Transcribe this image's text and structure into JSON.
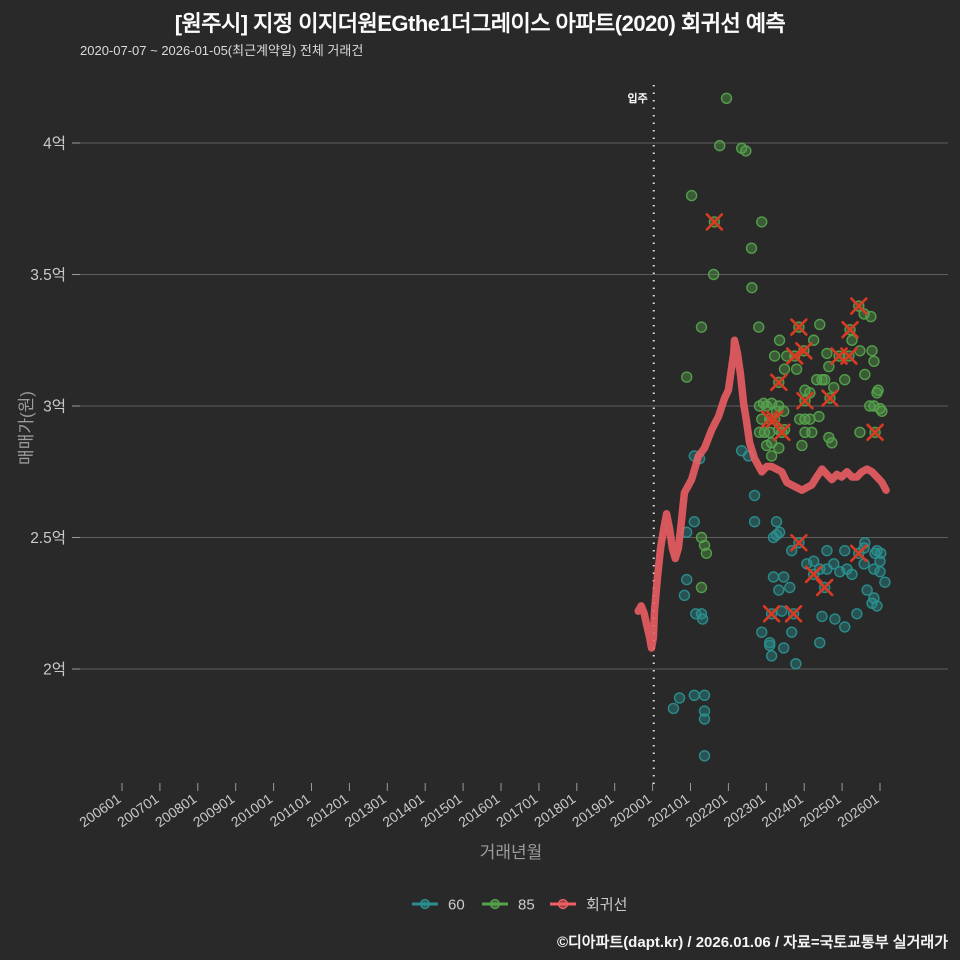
{
  "header": {
    "title": "[원주시] 지정 이지더원EGthe1더그레이스 아파트(2020) 회귀선 예측",
    "subtitle": "2020-07-07 ~ 2026-01-05(최근계약일) 전체 거래건"
  },
  "watermark": "©디아파트(dapt.kr) / 2026.01.06 / 자료=국토교통부 실거래가",
  "annotation": {
    "label": "입주",
    "x": 2020.03
  },
  "colors": {
    "background": "#292929",
    "grid": "#5d5d5d",
    "tick": "#9a9a9a",
    "dotted_line": "#e0e0e0",
    "teal": "#2b8f8f",
    "green": "#55a24d",
    "red_line": "#ef5f63",
    "x_mark": "#d93a22"
  },
  "legend": [
    {
      "label": "60",
      "color": "#2b8f8f"
    },
    {
      "label": "85",
      "color": "#55a24d"
    },
    {
      "label": "회귀선",
      "color": "#ef5f63"
    }
  ],
  "chart_data": {
    "type": "scatter",
    "title": "[원주시] 지정 이지더원EGthe1더그레이스 아파트(2020) 회귀선 예측",
    "xlabel": "거래년월",
    "ylabel": "매매가(원)",
    "grid": true,
    "legend_position": "bottom",
    "xlim": [
      2004.9,
      2027.8
    ],
    "ylim": [
      1.52,
      4.22
    ],
    "x_ticks": {
      "years": [
        2006,
        2007,
        2008,
        2009,
        2010,
        2011,
        2012,
        2013,
        2014,
        2015,
        2016,
        2017,
        2018,
        2019,
        2020,
        2021,
        2022,
        2023,
        2024,
        2025,
        2026
      ],
      "labels": [
        "200601",
        "200701",
        "200801",
        "200901",
        "201001",
        "201101",
        "201201",
        "201301",
        "201401",
        "201501",
        "201601",
        "201701",
        "201801",
        "201901",
        "202001",
        "202101",
        "202201",
        "202301",
        "202401",
        "202501",
        "202601"
      ]
    },
    "y_ticks": {
      "values": [
        2,
        2.5,
        3,
        3.5,
        4
      ],
      "labels": [
        "2억",
        "2.5억",
        "3억",
        "3.5억",
        "4억"
      ]
    },
    "series": [
      {
        "name": "60",
        "type": "scatter",
        "marker": "circle",
        "color": "#2b8f8f",
        "points": [
          [
            2021.1,
            2.81
          ],
          [
            2021.24,
            2.8
          ],
          [
            2022.35,
            2.83
          ],
          [
            2022.53,
            2.81
          ],
          [
            2022.69,
            2.66
          ],
          [
            2021.1,
            2.56
          ],
          [
            2020.9,
            2.52
          ],
          [
            2022.69,
            2.56
          ],
          [
            2023.27,
            2.56
          ],
          [
            2023.35,
            2.52
          ],
          [
            2023.19,
            2.5
          ],
          [
            2023.27,
            2.51
          ],
          [
            2023.67,
            2.45
          ],
          [
            2024.6,
            2.45
          ],
          [
            2025.07,
            2.45
          ],
          [
            2025.6,
            2.48
          ],
          [
            2025.87,
            2.44
          ],
          [
            2026.0,
            2.41
          ],
          [
            2025.58,
            2.46
          ],
          [
            2025.92,
            2.45
          ],
          [
            2026.02,
            2.44
          ],
          [
            2024.07,
            2.4
          ],
          [
            2024.25,
            2.41
          ],
          [
            2024.41,
            2.38
          ],
          [
            2024.6,
            2.38
          ],
          [
            2024.78,
            2.4
          ],
          [
            2024.94,
            2.37
          ],
          [
            2025.13,
            2.38
          ],
          [
            2025.26,
            2.36
          ],
          [
            2025.58,
            2.4
          ],
          [
            2025.84,
            2.38
          ],
          [
            2026.0,
            2.37
          ],
          [
            2023.19,
            2.35
          ],
          [
            2023.46,
            2.35
          ],
          [
            2023.62,
            2.31
          ],
          [
            2023.33,
            2.3
          ],
          [
            2020.9,
            2.34
          ],
          [
            2020.84,
            2.28
          ],
          [
            2026.13,
            2.33
          ],
          [
            2025.66,
            2.3
          ],
          [
            2025.84,
            2.27
          ],
          [
            2023.41,
            2.22
          ],
          [
            2024.47,
            2.2
          ],
          [
            2024.81,
            2.19
          ],
          [
            2025.39,
            2.21
          ],
          [
            2025.79,
            2.25
          ],
          [
            2025.92,
            2.24
          ],
          [
            2022.88,
            2.14
          ],
          [
            2023.09,
            2.1
          ],
          [
            2023.67,
            2.14
          ],
          [
            2023.09,
            2.09
          ],
          [
            2023.46,
            2.08
          ],
          [
            2024.41,
            2.1
          ],
          [
            2025.07,
            2.16
          ],
          [
            2023.14,
            2.05
          ],
          [
            2023.78,
            2.02
          ],
          [
            2021.32,
            2.19
          ],
          [
            2021.14,
            2.21
          ],
          [
            2021.29,
            2.21
          ],
          [
            2021.1,
            1.9
          ],
          [
            2020.55,
            1.85
          ],
          [
            2020.71,
            1.89
          ],
          [
            2021.37,
            1.84
          ],
          [
            2021.37,
            1.81
          ],
          [
            2021.37,
            1.67
          ],
          [
            2021.37,
            1.9
          ],
          [
            2023.86,
            2.48
          ],
          [
            2025.44,
            2.44
          ],
          [
            2024.25,
            2.36
          ],
          [
            2024.54,
            2.31
          ],
          [
            2023.14,
            2.21
          ],
          [
            2023.72,
            2.21
          ]
        ]
      },
      {
        "name": "85",
        "type": "scatter",
        "marker": "circle",
        "color": "#55a24d",
        "points": [
          [
            2021.95,
            4.17
          ],
          [
            2021.77,
            3.99
          ],
          [
            2022.35,
            3.98
          ],
          [
            2022.46,
            3.97
          ],
          [
            2021.03,
            3.8
          ],
          [
            2022.88,
            3.7
          ],
          [
            2022.61,
            3.6
          ],
          [
            2021.61,
            3.5
          ],
          [
            2022.62,
            3.45
          ],
          [
            2025.58,
            3.35
          ],
          [
            2025.76,
            3.34
          ],
          [
            2021.29,
            3.3
          ],
          [
            2022.8,
            3.3
          ],
          [
            2024.41,
            3.31
          ],
          [
            2023.35,
            3.25
          ],
          [
            2024.25,
            3.25
          ],
          [
            2025.26,
            3.25
          ],
          [
            2023.22,
            3.19
          ],
          [
            2023.54,
            3.19
          ],
          [
            2024.6,
            3.2
          ],
          [
            2025.47,
            3.21
          ],
          [
            2025.79,
            3.21
          ],
          [
            2025.84,
            3.17
          ],
          [
            2023.48,
            3.14
          ],
          [
            2023.8,
            3.14
          ],
          [
            2024.65,
            3.15
          ],
          [
            2025.6,
            3.12
          ],
          [
            2020.9,
            3.11
          ],
          [
            2024.33,
            3.1
          ],
          [
            2024.47,
            3.1
          ],
          [
            2024.54,
            3.1
          ],
          [
            2025.07,
            3.1
          ],
          [
            2024.02,
            3.06
          ],
          [
            2024.15,
            3.05
          ],
          [
            2024.78,
            3.07
          ],
          [
            2025.95,
            3.06
          ],
          [
            2025.92,
            3.05
          ],
          [
            2022.82,
            3.0
          ],
          [
            2023.01,
            3.0
          ],
          [
            2025.73,
            3.0
          ],
          [
            2025.84,
            3.0
          ],
          [
            2026.0,
            2.99
          ],
          [
            2026.05,
            2.98
          ],
          [
            2022.93,
            3.01
          ],
          [
            2023.14,
            3.01
          ],
          [
            2023.33,
            3.0
          ],
          [
            2023.27,
            2.98
          ],
          [
            2023.46,
            2.98
          ],
          [
            2023.88,
            2.95
          ],
          [
            2024.02,
            2.95
          ],
          [
            2024.15,
            2.95
          ],
          [
            2024.39,
            2.96
          ],
          [
            2022.88,
            2.95
          ],
          [
            2022.82,
            2.9
          ],
          [
            2022.95,
            2.9
          ],
          [
            2023.09,
            2.9
          ],
          [
            2023.33,
            2.91
          ],
          [
            2023.48,
            2.91
          ],
          [
            2024.02,
            2.9
          ],
          [
            2024.2,
            2.9
          ],
          [
            2025.47,
            2.9
          ],
          [
            2024.65,
            2.88
          ],
          [
            2024.73,
            2.86
          ],
          [
            2023.14,
            2.86
          ],
          [
            2023.33,
            2.84
          ],
          [
            2023.01,
            2.85
          ],
          [
            2023.94,
            2.85
          ],
          [
            2023.14,
            2.81
          ],
          [
            2021.29,
            2.5
          ],
          [
            2021.37,
            2.47
          ],
          [
            2021.42,
            2.44
          ],
          [
            2021.29,
            2.31
          ],
          [
            2021.63,
            3.7
          ],
          [
            2023.86,
            3.3
          ],
          [
            2025.21,
            3.29
          ],
          [
            2025.44,
            3.38
          ],
          [
            2023.75,
            3.19
          ],
          [
            2023.99,
            3.21
          ],
          [
            2024.92,
            3.19
          ],
          [
            2025.18,
            3.19
          ],
          [
            2023.33,
            3.09
          ],
          [
            2024.02,
            3.02
          ],
          [
            2024.68,
            3.03
          ],
          [
            2023.09,
            2.95
          ],
          [
            2023.22,
            2.95
          ],
          [
            2023.41,
            2.9
          ],
          [
            2025.87,
            2.9
          ]
        ]
      },
      {
        "name": "회귀선",
        "type": "line",
        "color": "#ef5f63",
        "points": [
          [
            2019.62,
            2.22
          ],
          [
            2019.7,
            2.24
          ],
          [
            2019.78,
            2.21
          ],
          [
            2019.84,
            2.17
          ],
          [
            2019.92,
            2.12
          ],
          [
            2019.97,
            2.08
          ],
          [
            2020.02,
            2.12
          ],
          [
            2020.05,
            2.22
          ],
          [
            2020.13,
            2.35
          ],
          [
            2020.21,
            2.46
          ],
          [
            2020.29,
            2.53
          ],
          [
            2020.37,
            2.59
          ],
          [
            2020.45,
            2.53
          ],
          [
            2020.52,
            2.46
          ],
          [
            2020.6,
            2.42
          ],
          [
            2020.68,
            2.46
          ],
          [
            2020.76,
            2.56
          ],
          [
            2020.84,
            2.67
          ],
          [
            2021.03,
            2.72
          ],
          [
            2021.21,
            2.81
          ],
          [
            2021.37,
            2.84
          ],
          [
            2021.56,
            2.91
          ],
          [
            2021.74,
            2.96
          ],
          [
            2021.9,
            3.03
          ],
          [
            2022.0,
            3.06
          ],
          [
            2022.08,
            3.14
          ],
          [
            2022.14,
            3.2
          ],
          [
            2022.16,
            3.25
          ],
          [
            2022.24,
            3.2
          ],
          [
            2022.32,
            3.12
          ],
          [
            2022.4,
            3.01
          ],
          [
            2022.48,
            2.94
          ],
          [
            2022.56,
            2.86
          ],
          [
            2022.69,
            2.8
          ],
          [
            2022.88,
            2.75
          ],
          [
            2023.01,
            2.77
          ],
          [
            2023.14,
            2.77
          ],
          [
            2023.27,
            2.76
          ],
          [
            2023.41,
            2.75
          ],
          [
            2023.54,
            2.71
          ],
          [
            2023.67,
            2.7
          ],
          [
            2023.8,
            2.69
          ],
          [
            2023.94,
            2.68
          ],
          [
            2024.07,
            2.69
          ],
          [
            2024.2,
            2.7
          ],
          [
            2024.33,
            2.73
          ],
          [
            2024.47,
            2.76
          ],
          [
            2024.6,
            2.74
          ],
          [
            2024.73,
            2.72
          ],
          [
            2024.86,
            2.74
          ],
          [
            2024.99,
            2.73
          ],
          [
            2025.13,
            2.75
          ],
          [
            2025.26,
            2.73
          ],
          [
            2025.39,
            2.73
          ],
          [
            2025.52,
            2.75
          ],
          [
            2025.66,
            2.76
          ],
          [
            2025.79,
            2.75
          ],
          [
            2025.92,
            2.73
          ],
          [
            2026.05,
            2.71
          ],
          [
            2026.16,
            2.68
          ]
        ]
      },
      {
        "name": "x-marks",
        "type": "scatter",
        "marker": "x",
        "color": "#d93a22",
        "points": [
          [
            2021.63,
            3.7
          ],
          [
            2023.86,
            3.3
          ],
          [
            2025.21,
            3.29
          ],
          [
            2025.44,
            3.38
          ],
          [
            2023.75,
            3.19
          ],
          [
            2023.99,
            3.21
          ],
          [
            2024.92,
            3.19
          ],
          [
            2025.18,
            3.19
          ],
          [
            2023.33,
            3.09
          ],
          [
            2024.02,
            3.02
          ],
          [
            2024.68,
            3.03
          ],
          [
            2023.09,
            2.95
          ],
          [
            2023.22,
            2.95
          ],
          [
            2023.41,
            2.9
          ],
          [
            2025.87,
            2.9
          ],
          [
            2023.86,
            2.48
          ],
          [
            2025.44,
            2.44
          ],
          [
            2024.25,
            2.36
          ],
          [
            2024.54,
            2.31
          ],
          [
            2023.14,
            2.21
          ],
          [
            2023.72,
            2.21
          ]
        ]
      }
    ]
  }
}
